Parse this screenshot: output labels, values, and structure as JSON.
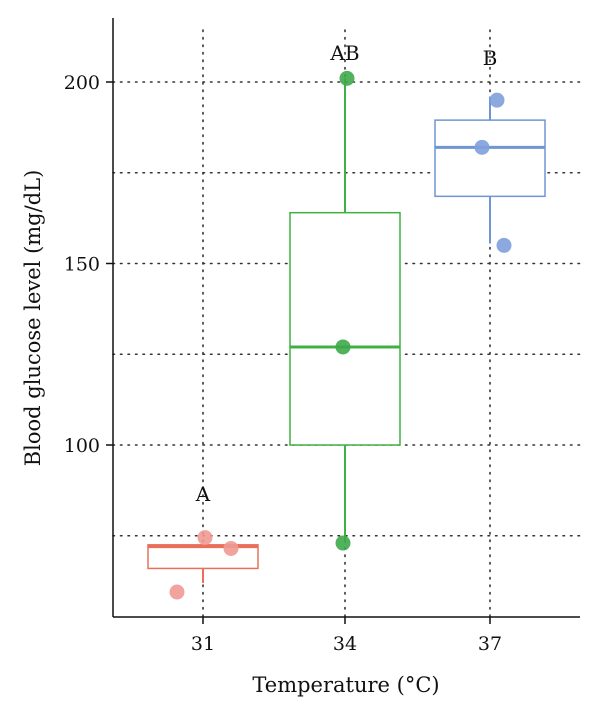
{
  "chart_data": {
    "type": "box",
    "title": "",
    "xlabel": "Temperature (°C)",
    "ylabel": "Blood glucose level (mg/dL)",
    "categories": [
      "31",
      "34",
      "37"
    ],
    "ylim": [
      57,
      218
    ],
    "yticks": [
      100,
      150,
      200
    ],
    "ytick_labels": [
      "100",
      "150",
      "200"
    ],
    "grid": true,
    "grid_style": "dotted",
    "grid_y": [
      75,
      100,
      125,
      150,
      175,
      200
    ],
    "legend": "none",
    "groups": [
      {
        "category": "31",
        "color": "#e8705a",
        "point_color": "#f09a92",
        "q1": 66,
        "median": 72,
        "q3": 72.5,
        "whisker_low": 62,
        "whisker_high": 72.5,
        "points": [
          59.5,
          74.5,
          71.5
        ],
        "letter": "A"
      },
      {
        "category": "34",
        "color": "#3fb142",
        "point_color": "#3ea84a",
        "q1": 100,
        "median": 127,
        "q3": 164,
        "whisker_low": 73,
        "whisker_high": 201,
        "points": [
          73,
          127,
          201
        ],
        "letter": "AB"
      },
      {
        "category": "37",
        "color": "#6f95d2",
        "point_color": "#7ea0db",
        "q1": 168.5,
        "median": 182,
        "q3": 189.5,
        "whisker_low": 155.5,
        "whisker_high": 196,
        "points": [
          155,
          182,
          195
        ],
        "letter": "B"
      }
    ]
  }
}
